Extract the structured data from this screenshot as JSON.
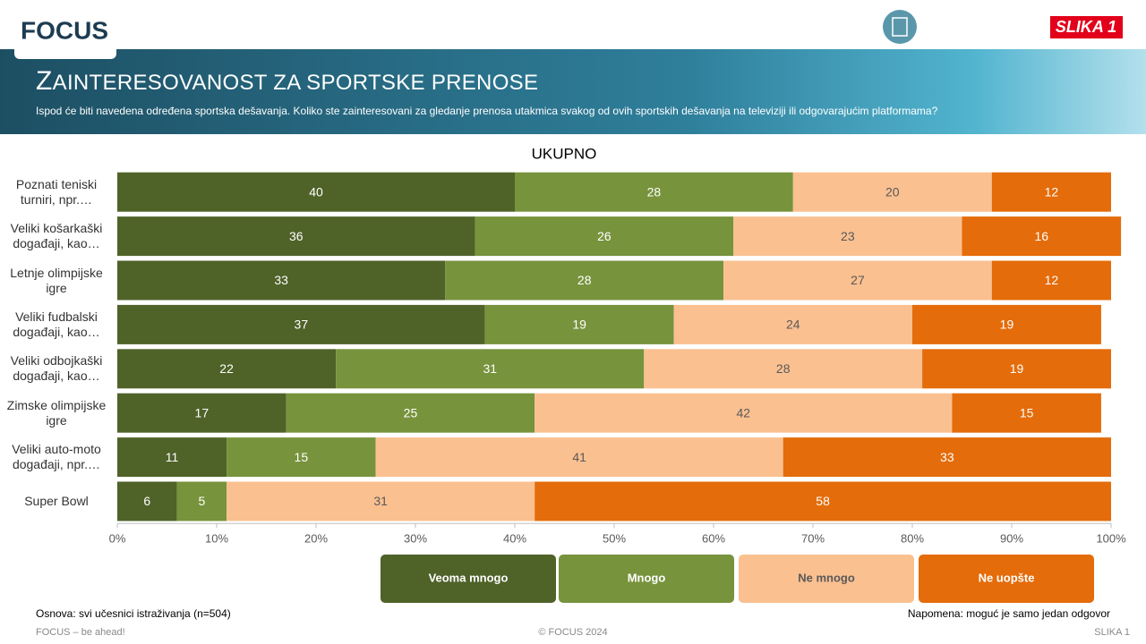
{
  "header": {
    "logo": "FOCUS",
    "badge": "SLIKA 1",
    "title": "ZAINTERESOVANOST ZA SPORTSKE PRENOSE",
    "subtitle": "Ispod će biti navedena određena sportska dešavanja. Koliko ste zainteresovani za gledanje prenosa utakmica svakog od ovih sportskih dešavanja na televiziji ili odgovarajućim platformama?"
  },
  "chart_data": {
    "type": "stacked_bar_horizontal",
    "title": "UKUPNO",
    "categories": [
      "Poznati teniski turniri, npr.…",
      "Veliki košarkaški događaji, kao…",
      "Letnje olimpijske igre",
      "Veliki fudbalski događaji, kao…",
      "Veliki odbojkaški događaji, kao…",
      "Zimske olimpijske igre",
      "Veliki auto-moto događaji, npr.…",
      "Super Bowl"
    ],
    "series": [
      {
        "name": "Veoma mnogo",
        "color": "#4f6228",
        "values": [
          40,
          36,
          33,
          37,
          22,
          17,
          11,
          6
        ]
      },
      {
        "name": "Mnogo",
        "color": "#77933c",
        "values": [
          28,
          26,
          28,
          19,
          31,
          25,
          15,
          5
        ]
      },
      {
        "name": "Ne mnogo",
        "color": "#fac090",
        "values": [
          20,
          23,
          27,
          24,
          28,
          42,
          41,
          31
        ]
      },
      {
        "name": "Ne uopšte",
        "color": "#e46c0a",
        "values": [
          12,
          16,
          12,
          19,
          19,
          15,
          33,
          58
        ]
      }
    ],
    "xlim": [
      0,
      100
    ],
    "xticks": [
      {
        "value": 0,
        "label": "0%"
      },
      {
        "value": 10,
        "label": "10%"
      },
      {
        "value": 20,
        "label": "20%"
      },
      {
        "value": 30,
        "label": "30%"
      },
      {
        "value": 40,
        "label": "40%"
      },
      {
        "value": 50,
        "label": "50%"
      },
      {
        "value": 60,
        "label": "60%"
      },
      {
        "value": 70,
        "label": "70%"
      },
      {
        "value": 80,
        "label": "80%"
      },
      {
        "value": 90,
        "label": "90%"
      },
      {
        "value": 100,
        "label": "100%"
      }
    ],
    "grid": false,
    "legend": "bottom"
  },
  "footer": {
    "base": "Osnova: svi učesnici istraživanja (n=504)",
    "note": "Napomena: moguć je samo jedan odgovor",
    "slogan": "FOCUS – be ahead!",
    "copyright": "© FOCUS 2024",
    "slide": "SLIKA 1"
  }
}
